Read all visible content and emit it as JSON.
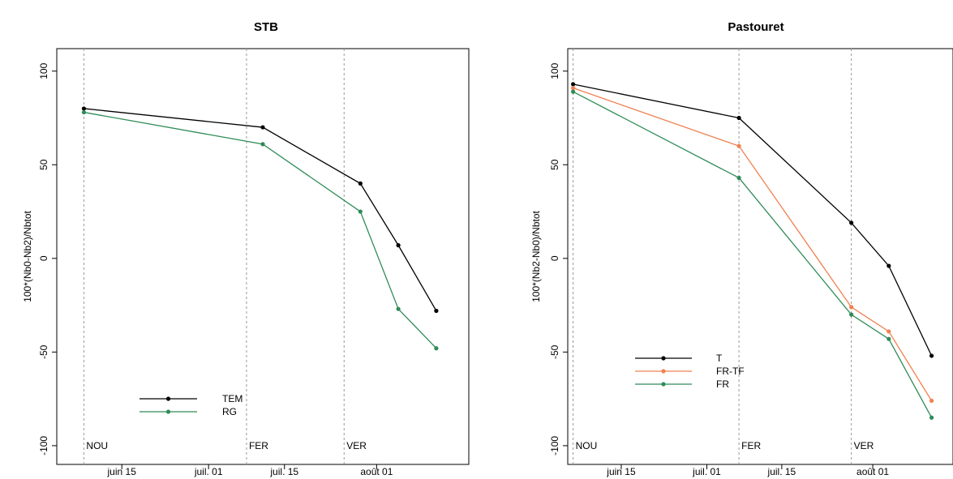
{
  "chart_data": [
    {
      "type": "line",
      "title": "STB",
      "xlabel": "",
      "ylabel": "100*(Nb0-Nb2)/Nbtot",
      "ylim": [
        -110,
        112
      ],
      "xlim": [
        "2014-06-03",
        "2014-08-18"
      ],
      "yticks": [
        -100,
        -50,
        0,
        50,
        100
      ],
      "xticks": [
        {
          "date": "2014-06-15",
          "label": "juin 15"
        },
        {
          "date": "2014-07-01",
          "label": "juil. 01"
        },
        {
          "date": "2014-07-15",
          "label": "juil. 15"
        },
        {
          "date": "2014-08-01",
          "label": "août 01"
        }
      ],
      "vlines": [
        {
          "date": "2014-06-08",
          "label": "NOU"
        },
        {
          "date": "2014-07-08",
          "label": "FER"
        },
        {
          "date": "2014-07-26",
          "label": "VER"
        }
      ],
      "series": [
        {
          "name": "TEM",
          "color": "#000000",
          "x": [
            "2014-06-08",
            "2014-07-11",
            "2014-07-29",
            "2014-08-05",
            "2014-08-12"
          ],
          "y": [
            80,
            70,
            40,
            7,
            -28
          ]
        },
        {
          "name": "RG",
          "color": "#2e8b57",
          "x": [
            "2014-06-08",
            "2014-07-11",
            "2014-07-29",
            "2014-08-05",
            "2014-08-12"
          ],
          "y": [
            78,
            61,
            25,
            -27,
            -48
          ]
        }
      ],
      "grid": false,
      "legend_position": "bottom-left"
    },
    {
      "type": "line",
      "title": "Pastouret",
      "xlabel": "",
      "ylabel": "100*(Nb2-Nb0)/Nbtot",
      "ylim": [
        -110,
        112
      ],
      "xlim": [
        "2014-06-05",
        "2014-08-16"
      ],
      "yticks": [
        -100,
        -50,
        0,
        50,
        100
      ],
      "xticks": [
        {
          "date": "2014-06-15",
          "label": "juin 15"
        },
        {
          "date": "2014-07-01",
          "label": "juil. 01"
        },
        {
          "date": "2014-07-15",
          "label": "juil. 15"
        },
        {
          "date": "2014-08-01",
          "label": "août 01"
        }
      ],
      "vlines": [
        {
          "date": "2014-06-06",
          "label": "NOU"
        },
        {
          "date": "2014-07-07",
          "label": "FER"
        },
        {
          "date": "2014-07-28",
          "label": "VER"
        }
      ],
      "series": [
        {
          "name": "T",
          "color": "#000000",
          "x": [
            "2014-06-06",
            "2014-07-07",
            "2014-07-28",
            "2014-08-04",
            "2014-08-12"
          ],
          "y": [
            93,
            75,
            19,
            -4,
            -52
          ]
        },
        {
          "name": "FR-TF",
          "color": "#f08050",
          "x": [
            "2014-06-06",
            "2014-07-07",
            "2014-07-28",
            "2014-08-04",
            "2014-08-12"
          ],
          "y": [
            91,
            60,
            -26,
            -39,
            -76
          ]
        },
        {
          "name": "FR",
          "color": "#2e8b57",
          "x": [
            "2014-06-06",
            "2014-07-07",
            "2014-07-28",
            "2014-08-04",
            "2014-08-12"
          ],
          "y": [
            89,
            43,
            -30,
            -43,
            -85
          ]
        }
      ],
      "grid": false,
      "legend_position": "bottom-left"
    }
  ]
}
